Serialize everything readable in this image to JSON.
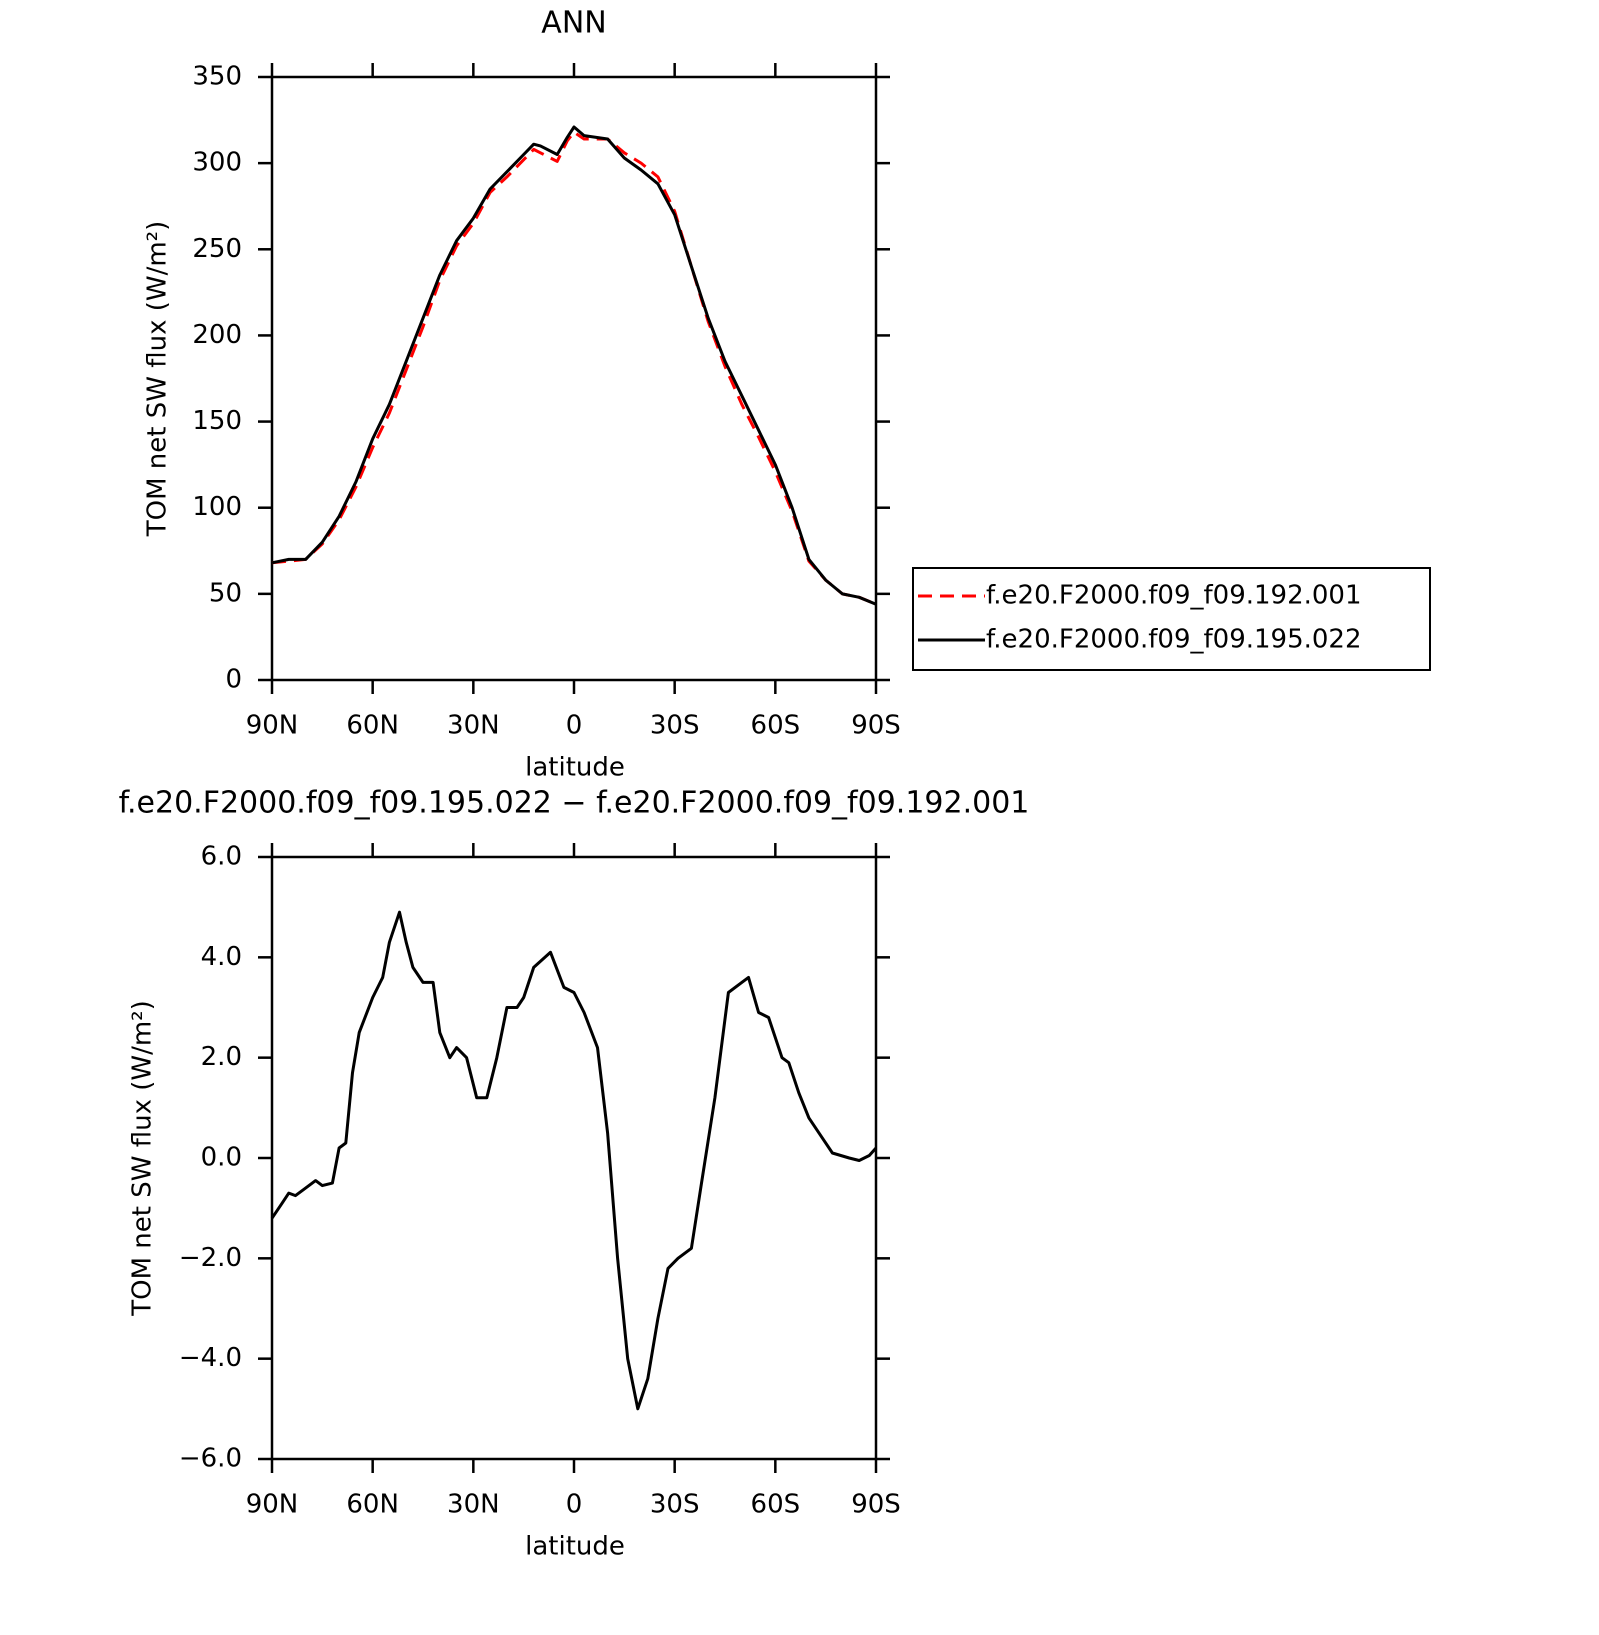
{
  "chart_data": [
    {
      "type": "line",
      "title": "ANN",
      "x_label": "latitude",
      "y_label": "TOM net SW flux (W/m²)",
      "x": [
        90,
        85,
        80,
        75,
        70,
        65,
        60,
        55,
        50,
        45,
        40,
        35,
        30,
        25,
        20,
        15,
        12,
        10,
        5,
        2,
        0,
        -3,
        -10,
        -15,
        -20,
        -25,
        -30,
        -35,
        -40,
        -45,
        -50,
        -55,
        -60,
        -65,
        -70,
        -75,
        -80,
        -85,
        -90
      ],
      "series": [
        {
          "name": "f.e20.F2000.f09_f09.192.001",
          "color": "#ff0000",
          "dash": true,
          "values": [
            68,
            69,
            70,
            79,
            93,
            112,
            135,
            155,
            180,
            205,
            232,
            252,
            265,
            283,
            292,
            302,
            308,
            306,
            301,
            313,
            318,
            314,
            314,
            306,
            300,
            292,
            272,
            240,
            208,
            182,
            160,
            141,
            121,
            98,
            69,
            58,
            50,
            48,
            44
          ]
        },
        {
          "name": "f.e20.F2000.f09_f09.195.022",
          "color": "#000000",
          "dash": false,
          "values": [
            68,
            70,
            70,
            80,
            95,
            115,
            140,
            160,
            185,
            210,
            235,
            255,
            268,
            285,
            295,
            305,
            311,
            310,
            305,
            315,
            321,
            316,
            314,
            303,
            296,
            288,
            270,
            240,
            210,
            185,
            165,
            145,
            125,
            100,
            70,
            58,
            50,
            48,
            44
          ]
        }
      ],
      "xlim": [
        90,
        -90
      ],
      "xticks": [
        {
          "value": 90,
          "label": "90N"
        },
        {
          "value": 60,
          "label": "60N"
        },
        {
          "value": 30,
          "label": "30N"
        },
        0,
        {
          "value": -30,
          "label": "30S"
        },
        {
          "value": -60,
          "label": "60S"
        },
        {
          "value": -90,
          "label": "90S"
        }
      ],
      "ylim": [
        0,
        350
      ],
      "yticks": [
        0,
        50,
        100,
        150,
        200,
        250,
        300,
        350
      ],
      "legend": "right"
    },
    {
      "type": "line",
      "title": "f.e20.F2000.f09_f09.195.022 − f.e20.F2000.f09_f09.192.001",
      "x_label": "latitude",
      "y_label": "TOM net SW flux (W/m²)",
      "x": [
        90,
        87,
        85,
        83,
        80,
        77,
        75,
        72,
        70,
        68,
        66,
        64,
        60,
        57,
        55,
        52,
        50,
        48,
        45,
        42,
        40,
        37,
        35,
        32,
        29,
        26,
        23,
        20,
        17,
        15,
        12,
        7,
        3,
        0,
        -3,
        -7,
        -10,
        -13,
        -16,
        -19,
        -22,
        -25,
        -28,
        -31,
        -35,
        -38,
        -42,
        -46,
        -50,
        -52,
        -55,
        -58,
        -62,
        -64,
        -67,
        -70,
        -74,
        -77,
        -82,
        -85,
        -88,
        -90
      ],
      "series": [
        {
          "name": null,
          "color": "#000000",
          "dash": false,
          "values": [
            -1.2,
            -0.9,
            -0.7,
            -0.75,
            -0.6,
            -0.45,
            -0.55,
            -0.5,
            0.2,
            0.3,
            1.7,
            2.5,
            3.2,
            3.6,
            4.3,
            4.9,
            4.3,
            3.8,
            3.5,
            3.5,
            2.5,
            2.0,
            2.2,
            2.0,
            1.2,
            1.2,
            2.0,
            3.0,
            3.0,
            3.2,
            3.8,
            4.1,
            3.4,
            3.3,
            2.9,
            2.2,
            0.5,
            -2.0,
            -4.0,
            -5.0,
            -4.4,
            -3.2,
            -2.2,
            -2.0,
            -1.8,
            -0.5,
            1.2,
            3.3,
            3.5,
            3.6,
            2.9,
            2.8,
            2.0,
            1.9,
            1.3,
            0.8,
            0.4,
            0.1,
            0.0,
            -0.05,
            0.05,
            0.2
          ]
        }
      ],
      "xlim": [
        90,
        -90
      ],
      "xticks": [
        {
          "value": 90,
          "label": "90N"
        },
        {
          "value": 60,
          "label": "60N"
        },
        {
          "value": 30,
          "label": "30N"
        },
        0,
        {
          "value": -30,
          "label": "30S"
        },
        {
          "value": -60,
          "label": "60S"
        },
        {
          "value": -90,
          "label": "90S"
        }
      ],
      "ylim": [
        -6,
        6
      ],
      "yticks": [
        {
          "value": -6,
          "label": "−6.0"
        },
        {
          "value": -4,
          "label": "−4.0"
        },
        {
          "value": -2,
          "label": "−2.0"
        },
        {
          "value": 0,
          "label": "0.0"
        },
        {
          "value": 2,
          "label": "2.0"
        },
        {
          "value": 4,
          "label": "4.0"
        },
        {
          "value": 6,
          "label": "6.0"
        }
      ]
    }
  ]
}
